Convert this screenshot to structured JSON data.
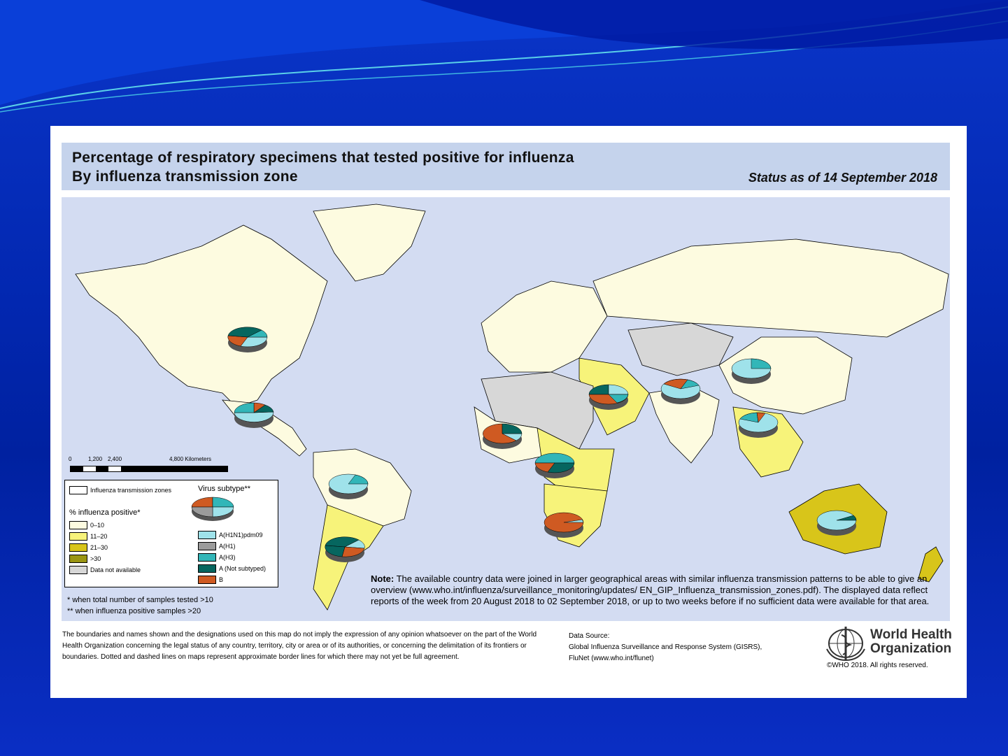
{
  "colors": {
    "background": "#0227b0",
    "header_band": "#c5d3ec",
    "ocean": "#d3dcf2",
    "land_0_10": "#fdfbe0",
    "land_11_20": "#f7f37a",
    "land_21_30": "#d8c51a",
    "land_gt30": "#9a9512",
    "no_data": "#d7d7d7",
    "a_h1n1pdm09": "#9fe2ea",
    "a_h1": "#9b9b9b",
    "a_h3": "#32b6b8",
    "a_not_subtyped": "#06665f",
    "b": "#cf5a22"
  },
  "title": {
    "line1": "Percentage of respiratory specimens that tested positive for influenza",
    "line2": "By influenza transmission zone",
    "status": "Status as of 14 September 2018"
  },
  "scale": {
    "labels": [
      "0",
      "1,200",
      "2,400",
      "4,800 Kilometers"
    ]
  },
  "legend": {
    "zones_label": "Influenza transmission zones",
    "subtype_title": "Virus subtype**",
    "positive_title": "% influenza positive*",
    "positive_classes": [
      "0–10",
      "11–20",
      "21–30",
      ">30",
      "Data not available"
    ],
    "subtypes": [
      "A(H1N1)pdm09",
      "A(H1)",
      "A(H3)",
      "A (Not subtyped)",
      "B"
    ]
  },
  "footnotes": {
    "f1": "* when total number of samples tested >10",
    "f2": "** when influenza positive samples >20"
  },
  "note": {
    "label": "Note:",
    "text": "The available country data were joined in larger geographical areas with similar influenza transmission patterns to be able to give an overview (www.who.int/influenza/surveillance_monitoring/updates/ EN_GIP_Influenza_transmission_zones.pdf). The displayed data reflect reports of the week from 20 August 2018 to 02 September 2018, or up to two weeks before if no sufficient data were available for that area."
  },
  "disclaimer": "The boundaries and names shown and the designations used on this map do not imply the expression of any opinion whatsoever on the part of the World Health Organization concerning the legal status of any country, territory, city or area or of its authorities, or concerning the delimitation of its frontiers or boundaries. Dotted and dashed lines on maps represent approximate border lines for which there may not yet be full agreement.",
  "data_source": {
    "label": "Data Source:",
    "line1": "Global Influenza Surveillance and Response System (GISRS),",
    "line2": "FluNet (www.who.int/flunet)"
  },
  "who": {
    "name_line1": "World Health",
    "name_line2": "Organization",
    "copyright": "©WHO 2018. All rights reserved."
  }
}
